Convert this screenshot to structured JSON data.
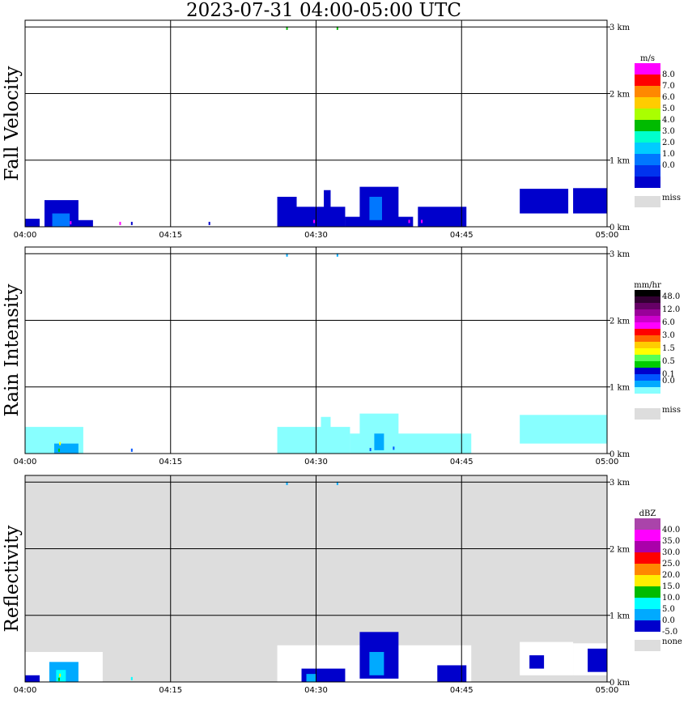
{
  "title": "2023-07-31   04:00-05:00 UTC",
  "x_tick_labels": [
    "04:00",
    "04:15",
    "04:30",
    "04:45",
    "05:00"
  ],
  "height_labels": [
    "3 km",
    "2 km",
    "1 km",
    "0 km"
  ],
  "chart_data": [
    {
      "type": "heatmap",
      "ylabel": "Fall Velocity",
      "background": "#ffffff",
      "legend": {
        "unit": "m/s",
        "labels": [
          "8.0",
          "7.0",
          "6.0",
          "5.0",
          "4.0",
          "3.0",
          "2.0",
          "1.0",
          "0.0"
        ],
        "colors": [
          "#ff00ff",
          "#ff0000",
          "#ff8800",
          "#ffcc00",
          "#aaff00",
          "#00bb00",
          "#00ffcc",
          "#00ccff",
          "#0077ff",
          "#0033ee",
          "#0000cc"
        ],
        "miss_label": "miss",
        "miss_color": "#dddddd"
      },
      "xlim_minutes": [
        0,
        60
      ],
      "ylim_km": [
        0,
        3.1
      ],
      "regions": [
        {
          "t0": 0.0,
          "t1": 1.5,
          "h0": 0.0,
          "h1": 0.12,
          "color": "#0000cc"
        },
        {
          "t0": 2.0,
          "t1": 5.5,
          "h0": 0.0,
          "h1": 0.4,
          "color": "#0000cc"
        },
        {
          "t0": 2.8,
          "t1": 4.6,
          "h0": 0.0,
          "h1": 0.2,
          "color": "#0077ff"
        },
        {
          "t0": 5.0,
          "t1": 7.0,
          "h0": 0.0,
          "h1": 0.1,
          "color": "#0000cc"
        },
        {
          "t0": 26.0,
          "t1": 28.0,
          "h0": 0.0,
          "h1": 0.45,
          "color": "#0000cc"
        },
        {
          "t0": 27.5,
          "t1": 33.0,
          "h0": 0.0,
          "h1": 0.3,
          "color": "#0000cc"
        },
        {
          "t0": 30.8,
          "t1": 31.5,
          "h0": 0.0,
          "h1": 0.55,
          "color": "#0000cc"
        },
        {
          "t0": 33.0,
          "t1": 40.0,
          "h0": 0.0,
          "h1": 0.15,
          "color": "#0000cc"
        },
        {
          "t0": 34.5,
          "t1": 38.5,
          "h0": 0.1,
          "h1": 0.6,
          "color": "#0000cc"
        },
        {
          "t0": 35.5,
          "t1": 36.8,
          "h0": 0.1,
          "h1": 0.45,
          "color": "#0077ff"
        },
        {
          "t0": 40.5,
          "t1": 45.5,
          "h0": 0.0,
          "h1": 0.3,
          "color": "#0000cc"
        },
        {
          "t0": 51.0,
          "t1": 56.0,
          "h0": 0.2,
          "h1": 0.57,
          "color": "#0000cc"
        },
        {
          "t0": 56.5,
          "t1": 60.0,
          "h0": 0.2,
          "h1": 0.58,
          "color": "#0000cc"
        }
      ],
      "points": [
        {
          "t": 4.7,
          "h": 0.06,
          "color": "#ff00ff"
        },
        {
          "t": 9.8,
          "h": 0.05,
          "color": "#ff00ff"
        },
        {
          "t": 11.0,
          "h": 0.05,
          "color": "#0000cc"
        },
        {
          "t": 19.0,
          "h": 0.05,
          "color": "#0000cc"
        },
        {
          "t": 29.8,
          "h": 0.08,
          "color": "#ff00ff"
        },
        {
          "t": 39.6,
          "h": 0.08,
          "color": "#ff00ff"
        },
        {
          "t": 40.9,
          "h": 0.08,
          "color": "#ff00ff"
        },
        {
          "t": 27.0,
          "h": 2.98,
          "color": "#00bb00"
        },
        {
          "t": 32.2,
          "h": 2.98,
          "color": "#00bb00"
        }
      ]
    },
    {
      "type": "heatmap",
      "ylabel": "Rain Intensity",
      "background": "#ffffff",
      "legend": {
        "unit": "mm/hr",
        "labels": [
          "48.0",
          "",
          "12.0",
          "",
          "6.0",
          "",
          "3.0",
          "",
          "1.5",
          "",
          "0.5",
          "",
          "0.1",
          "0.0"
        ],
        "colors": [
          "#000000",
          "#330033",
          "#660066",
          "#990099",
          "#cc00cc",
          "#ff00ff",
          "#ff0000",
          "#ff6600",
          "#ffcc00",
          "#ffff00",
          "#55ff55",
          "#00cc00",
          "#0000cc",
          "#0055ff",
          "#00aaff",
          "#88ffff",
          "#ffffff"
        ],
        "miss_label": "miss",
        "miss_color": "#dddddd"
      },
      "xlim_minutes": [
        0,
        60
      ],
      "ylim_km": [
        0,
        3.1
      ],
      "regions": [
        {
          "t0": 0.0,
          "t1": 6.0,
          "h0": 0.0,
          "h1": 0.4,
          "color": "#88ffff"
        },
        {
          "t0": 3.0,
          "t1": 5.5,
          "h0": 0.0,
          "h1": 0.15,
          "color": "#00aaff"
        },
        {
          "t0": 26.0,
          "t1": 33.5,
          "h0": 0.0,
          "h1": 0.4,
          "color": "#88ffff"
        },
        {
          "t0": 30.5,
          "t1": 31.5,
          "h0": 0.0,
          "h1": 0.55,
          "color": "#88ffff"
        },
        {
          "t0": 33.5,
          "t1": 46.0,
          "h0": 0.0,
          "h1": 0.3,
          "color": "#88ffff"
        },
        {
          "t0": 34.5,
          "t1": 38.5,
          "h0": 0.1,
          "h1": 0.6,
          "color": "#88ffff"
        },
        {
          "t0": 36.0,
          "t1": 37.0,
          "h0": 0.05,
          "h1": 0.3,
          "color": "#00aaff"
        },
        {
          "t0": 51.0,
          "t1": 60.0,
          "h0": 0.15,
          "h1": 0.58,
          "color": "#88ffff"
        }
      ],
      "points": [
        {
          "t": 3.5,
          "h": 0.05,
          "color": "#00cc00"
        },
        {
          "t": 3.6,
          "h": 0.15,
          "color": "#ffff00"
        },
        {
          "t": 5.0,
          "h": 0.06,
          "color": "#00aaff"
        },
        {
          "t": 11.0,
          "h": 0.05,
          "color": "#0055ff"
        },
        {
          "t": 35.6,
          "h": 0.06,
          "color": "#0055ff"
        },
        {
          "t": 38.0,
          "h": 0.08,
          "color": "#0055ff"
        },
        {
          "t": 27.0,
          "h": 2.98,
          "color": "#00aaff"
        },
        {
          "t": 32.2,
          "h": 2.98,
          "color": "#00aaff"
        }
      ]
    },
    {
      "type": "heatmap",
      "ylabel": "Reflectivity",
      "background": "#dddddd",
      "legend": {
        "unit": "dBZ",
        "labels": [
          "40.0",
          "35.0",
          "30.0",
          "25.0",
          "20.0",
          "15.0",
          "10.0",
          "5.0",
          "0.0",
          "-5.0"
        ],
        "colors": [
          "#aa44aa",
          "#ff00ff",
          "#aa00aa",
          "#ff0000",
          "#ff8800",
          "#ffee00",
          "#00bb00",
          "#00ffff",
          "#00aaff",
          "#0000cc"
        ],
        "miss_label": "none",
        "miss_color": "#dddddd"
      },
      "xlim_minutes": [
        0,
        60
      ],
      "ylim_km": [
        0,
        3.1
      ],
      "regions": [
        {
          "t0": 0.0,
          "t1": 8.0,
          "h0": 0.0,
          "h1": 0.45,
          "color": "#ffffff"
        },
        {
          "t0": 0.0,
          "t1": 1.5,
          "h0": 0.0,
          "h1": 0.1,
          "color": "#0000cc"
        },
        {
          "t0": 2.5,
          "t1": 5.5,
          "h0": 0.0,
          "h1": 0.3,
          "color": "#00aaff"
        },
        {
          "t0": 3.2,
          "t1": 4.2,
          "h0": 0.0,
          "h1": 0.18,
          "color": "#00ffff"
        },
        {
          "t0": 26.0,
          "t1": 46.0,
          "h0": 0.0,
          "h1": 0.55,
          "color": "#ffffff"
        },
        {
          "t0": 28.5,
          "t1": 33.0,
          "h0": 0.0,
          "h1": 0.2,
          "color": "#0000cc"
        },
        {
          "t0": 29.0,
          "t1": 30.0,
          "h0": 0.0,
          "h1": 0.12,
          "color": "#00aaff"
        },
        {
          "t0": 34.5,
          "t1": 38.5,
          "h0": 0.05,
          "h1": 0.75,
          "color": "#0000cc"
        },
        {
          "t0": 35.5,
          "t1": 37.0,
          "h0": 0.1,
          "h1": 0.45,
          "color": "#00aaff"
        },
        {
          "t0": 42.5,
          "t1": 45.5,
          "h0": 0.0,
          "h1": 0.25,
          "color": "#0000cc"
        },
        {
          "t0": 51.0,
          "t1": 56.5,
          "h0": 0.1,
          "h1": 0.6,
          "color": "#ffffff"
        },
        {
          "t0": 56.5,
          "t1": 60.0,
          "h0": 0.1,
          "h1": 0.58,
          "color": "#ffffff"
        },
        {
          "t0": 58.0,
          "t1": 60.0,
          "h0": 0.15,
          "h1": 0.5,
          "color": "#0000cc"
        },
        {
          "t0": 52.0,
          "t1": 53.5,
          "h0": 0.2,
          "h1": 0.4,
          "color": "#0000cc"
        }
      ],
      "points": [
        {
          "t": 3.6,
          "h": 0.1,
          "color": "#ffee00"
        },
        {
          "t": 3.5,
          "h": 0.04,
          "color": "#00bb00"
        },
        {
          "t": 11.0,
          "h": 0.05,
          "color": "#00ffff"
        },
        {
          "t": 27.0,
          "h": 2.98,
          "color": "#00aaff"
        },
        {
          "t": 32.2,
          "h": 2.98,
          "color": "#00aaff"
        }
      ]
    }
  ]
}
